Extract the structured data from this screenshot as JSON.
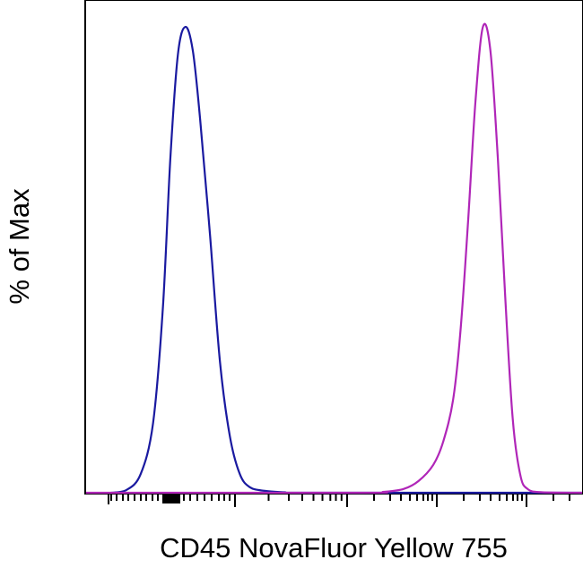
{
  "chart_data": {
    "type": "line",
    "title": "",
    "xlabel": "CD45 NovaFluor Yellow 755",
    "ylabel": "% of Max",
    "xscale": "biexponential",
    "ylim": [
      0,
      100
    ],
    "grid": false,
    "legend": "none",
    "tick_labels_shown": false,
    "series": [
      {
        "color": "#1a1aa0",
        "x": [
          0.05,
          0.08,
          0.11,
          0.135,
          0.155,
          0.17,
          0.185,
          0.2,
          0.215,
          0.23,
          0.25,
          0.27,
          0.29,
          0.31,
          0.33,
          0.36,
          0.4,
          0.45,
          1.0
        ],
        "y": [
          0,
          0.5,
          4,
          15,
          40,
          72,
          94,
          100,
          95,
          80,
          55,
          28,
          12,
          4,
          1.2,
          0.4,
          0.1,
          0,
          0
        ]
      },
      {
        "color": "#b026b8",
        "x": [
          0.0,
          0.55,
          0.6,
          0.64,
          0.67,
          0.7,
          0.72,
          0.74,
          0.755,
          0.77,
          0.785,
          0.8,
          0.815,
          0.83,
          0.845,
          0.86,
          0.875,
          0.89,
          0.92,
          1.0
        ],
        "y": [
          0,
          0,
          0.2,
          0.8,
          2.5,
          6,
          11,
          20,
          35,
          58,
          84,
          100,
          95,
          72,
          42,
          16,
          4,
          0.8,
          0.1,
          0
        ]
      }
    ]
  }
}
